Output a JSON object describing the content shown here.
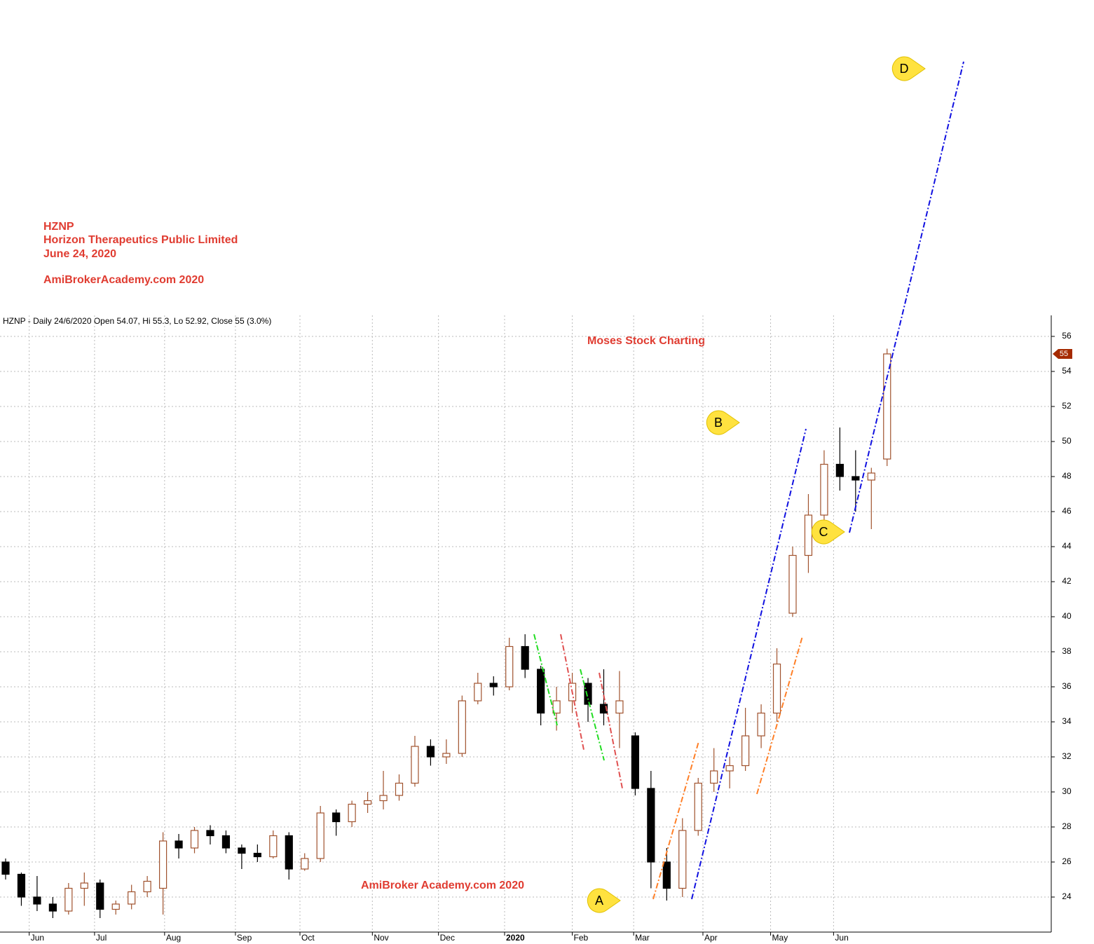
{
  "chart_data": {
    "type": "candlestick",
    "title_lines": [
      "HZNP",
      "Horizon Therapeutics Public Limited",
      "June 24, 2020"
    ],
    "credit": "AmiBrokerAcademy.com  2020",
    "header": "HZNP - Daily 24/6/2020 Open 54.07, Hi 55.3, Lo 52.92, Close 55 (3.0%)",
    "watermark_top": "Moses Stock Charting",
    "watermark_bottom": "AmiBroker Academy.com  2020",
    "annotations": [
      "A",
      "B",
      "C",
      "D"
    ],
    "last_price": 55,
    "up_color": "#a0522d",
    "down_color": "#000000",
    "ylim": [
      22,
      57.2
    ],
    "yticks": [
      24,
      26,
      28,
      30,
      32,
      34,
      36,
      38,
      40,
      42,
      44,
      46,
      48,
      50,
      52,
      54,
      56
    ],
    "xlim": [
      -0.2,
      66
    ],
    "xticks": [
      {
        "value": 1.5,
        "label": "Jun"
      },
      {
        "value": 5.65,
        "label": "Jul"
      },
      {
        "value": 10.1,
        "label": "Aug"
      },
      {
        "value": 14.6,
        "label": "Sep"
      },
      {
        "value": 18.7,
        "label": "Oct"
      },
      {
        "value": 23.3,
        "label": "Nov"
      },
      {
        "value": 27.5,
        "label": "Dec"
      },
      {
        "value": 31.7,
        "label": "2020"
      },
      {
        "value": 36.0,
        "label": "Feb"
      },
      {
        "value": 39.9,
        "label": "Mar"
      },
      {
        "value": 44.3,
        "label": "Apr"
      },
      {
        "value": 48.6,
        "label": "May"
      },
      {
        "value": 52.6,
        "label": "Jun"
      }
    ],
    "grid": true,
    "candles": [
      {
        "open": 26,
        "high": 26.2,
        "low": 25,
        "close": 25.3
      },
      {
        "open": 25.3,
        "high": 25.4,
        "low": 23.5,
        "close": 24
      },
      {
        "open": 24,
        "high": 25.2,
        "low": 23.2,
        "close": 23.6
      },
      {
        "open": 23.6,
        "high": 24,
        "low": 22.8,
        "close": 23.2
      },
      {
        "open": 23.2,
        "high": 24.8,
        "low": 23,
        "close": 24.5
      },
      {
        "open": 24.5,
        "high": 25.4,
        "low": 23.5,
        "close": 24.8
      },
      {
        "open": 24.8,
        "high": 25,
        "low": 22.8,
        "close": 23.3
      },
      {
        "open": 23.3,
        "high": 23.8,
        "low": 23,
        "close": 23.6
      },
      {
        "open": 23.6,
        "high": 24.7,
        "low": 23.3,
        "close": 24.3
      },
      {
        "open": 24.3,
        "high": 25.2,
        "low": 24,
        "close": 24.9
      },
      {
        "open": 24.5,
        "high": 27.7,
        "low": 23,
        "close": 27.2
      },
      {
        "open": 27.2,
        "high": 27.6,
        "low": 26.2,
        "close": 26.8
      },
      {
        "open": 26.8,
        "high": 28,
        "low": 26.5,
        "close": 27.8
      },
      {
        "open": 27.8,
        "high": 28.1,
        "low": 27,
        "close": 27.5
      },
      {
        "open": 27.5,
        "high": 27.8,
        "low": 26.5,
        "close": 26.8
      },
      {
        "open": 26.8,
        "high": 27,
        "low": 25.6,
        "close": 26.5
      },
      {
        "open": 26.5,
        "high": 27,
        "low": 26,
        "close": 26.3
      },
      {
        "open": 26.3,
        "high": 27.8,
        "low": 26.2,
        "close": 27.5
      },
      {
        "open": 27.5,
        "high": 27.7,
        "low": 25,
        "close": 25.6
      },
      {
        "open": 25.6,
        "high": 26.5,
        "low": 25.5,
        "close": 26.2
      },
      {
        "open": 26.2,
        "high": 29.2,
        "low": 26,
        "close": 28.8
      },
      {
        "open": 28.8,
        "high": 29,
        "low": 27.5,
        "close": 28.3
      },
      {
        "open": 28.3,
        "high": 29.5,
        "low": 28,
        "close": 29.3
      },
      {
        "open": 29.3,
        "high": 30,
        "low": 28.8,
        "close": 29.5
      },
      {
        "open": 29.5,
        "high": 31.2,
        "low": 29,
        "close": 29.8
      },
      {
        "open": 29.8,
        "high": 31,
        "low": 29.5,
        "close": 30.5
      },
      {
        "open": 30.5,
        "high": 33.2,
        "low": 30.3,
        "close": 32.6
      },
      {
        "open": 32.6,
        "high": 33,
        "low": 31.5,
        "close": 32
      },
      {
        "open": 32,
        "high": 33,
        "low": 31.6,
        "close": 32.2
      },
      {
        "open": 32.2,
        "high": 35.5,
        "low": 32,
        "close": 35.2
      },
      {
        "open": 35.2,
        "high": 36.8,
        "low": 35,
        "close": 36.2
      },
      {
        "open": 36.2,
        "high": 36.6,
        "low": 35.5,
        "close": 36
      },
      {
        "open": 36,
        "high": 38.8,
        "low": 35.8,
        "close": 38.3
      },
      {
        "open": 38.3,
        "high": 39,
        "low": 36.5,
        "close": 37
      },
      {
        "open": 37,
        "high": 37.2,
        "low": 33.8,
        "close": 34.5
      },
      {
        "open": 34.5,
        "high": 36,
        "low": 33.5,
        "close": 35.2
      },
      {
        "open": 35.2,
        "high": 36.8,
        "low": 34.5,
        "close": 36.2
      },
      {
        "open": 36.2,
        "high": 36.5,
        "low": 34,
        "close": 35
      },
      {
        "open": 35,
        "high": 37,
        "low": 33.8,
        "close": 34.5
      },
      {
        "open": 34.5,
        "high": 36.9,
        "low": 32.5,
        "close": 35.2
      },
      {
        "open": 33.2,
        "high": 33.4,
        "low": 29.8,
        "close": 30.2
      },
      {
        "open": 30.2,
        "high": 31.2,
        "low": 24.5,
        "close": 26
      },
      {
        "open": 26,
        "high": 26.8,
        "low": 23.8,
        "close": 24.5
      },
      {
        "open": 24.5,
        "high": 28.5,
        "low": 24,
        "close": 27.8
      },
      {
        "open": 27.8,
        "high": 30.8,
        "low": 27.5,
        "close": 30.5
      },
      {
        "open": 30.5,
        "high": 32.5,
        "low": 30,
        "close": 31.2
      },
      {
        "open": 31.2,
        "high": 32,
        "low": 30.2,
        "close": 31.5
      },
      {
        "open": 31.5,
        "high": 34.8,
        "low": 31.2,
        "close": 33.2
      },
      {
        "open": 33.2,
        "high": 35,
        "low": 32.5,
        "close": 34.5
      },
      {
        "open": 34.5,
        "high": 38.2,
        "low": 34,
        "close": 37.3
      },
      {
        "open": 40.2,
        "high": 44,
        "low": 40,
        "close": 43.5
      },
      {
        "open": 43.5,
        "high": 47,
        "low": 42.5,
        "close": 45.8
      },
      {
        "open": 45.8,
        "high": 49.5,
        "low": 45.5,
        "close": 48.7
      },
      {
        "open": 48.7,
        "high": 50.8,
        "low": 47.2,
        "close": 48
      },
      {
        "open": 48,
        "high": 49.5,
        "low": 46,
        "close": 47.8
      },
      {
        "open": 47.8,
        "high": 48.5,
        "low": 45,
        "close": 48.2
      },
      {
        "open": 49,
        "high": 55.3,
        "low": 48.6,
        "close": 55
      }
    ]
  }
}
